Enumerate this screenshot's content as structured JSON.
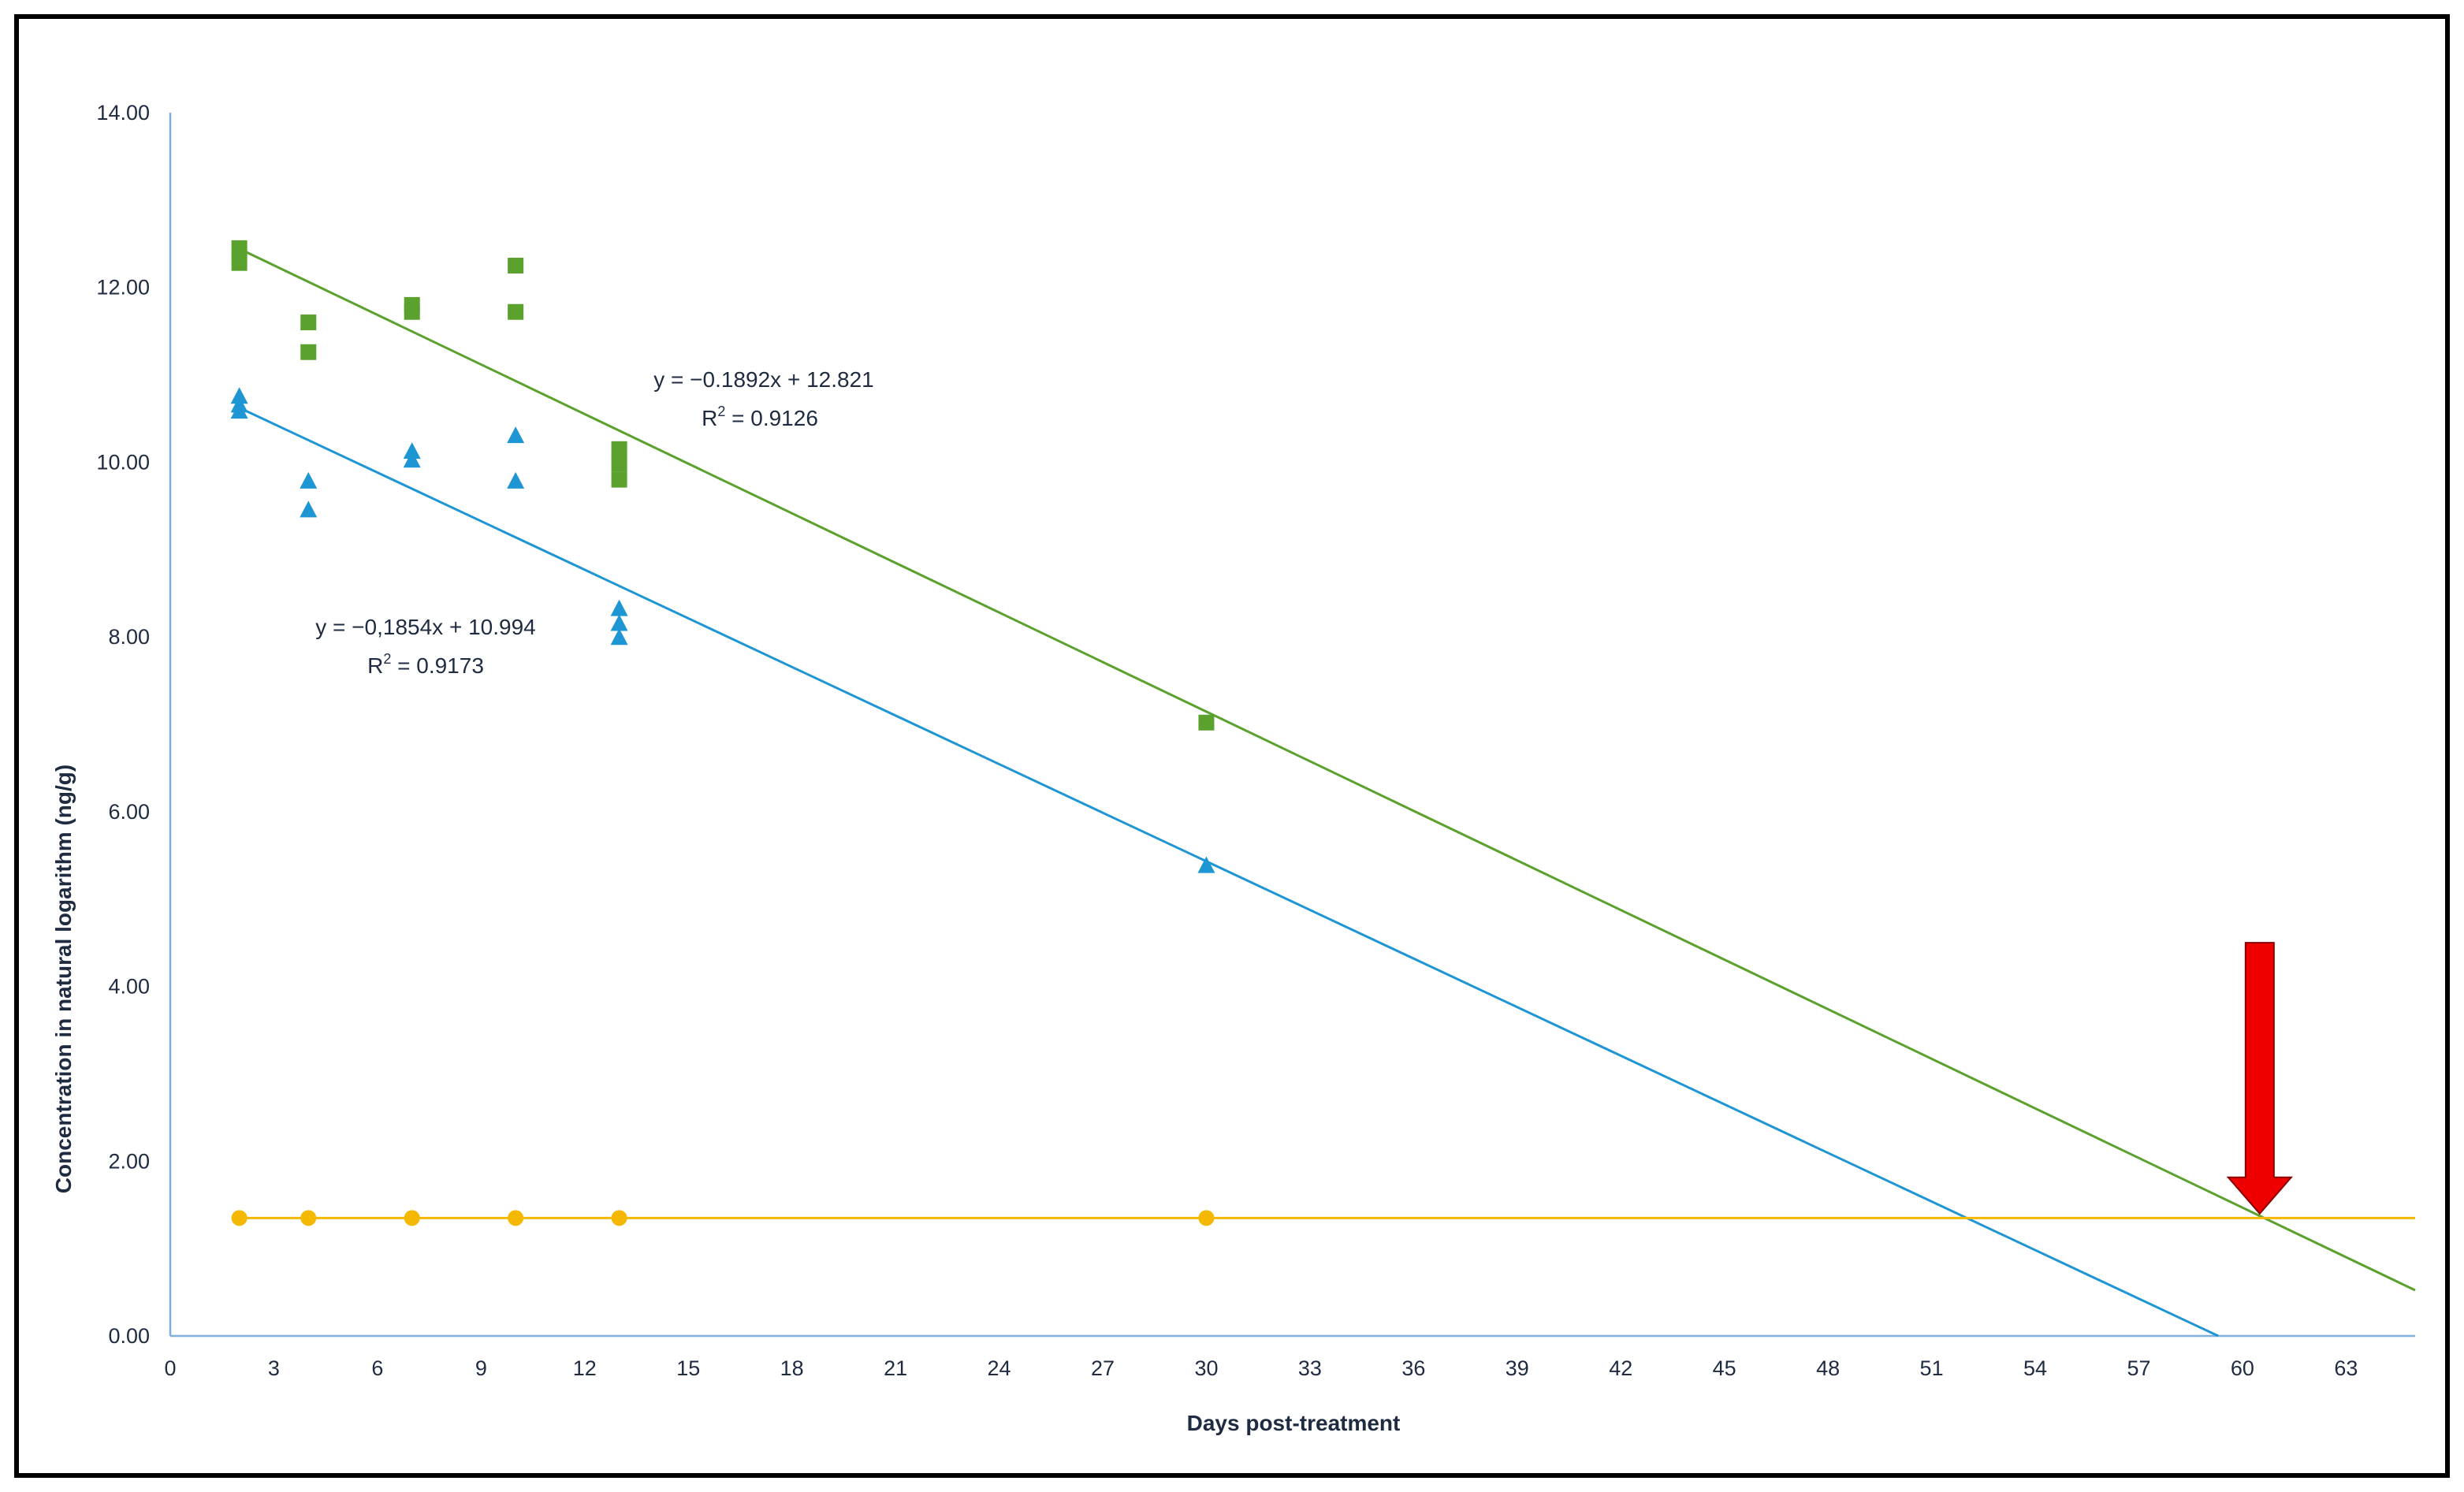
{
  "chart_data": {
    "type": "scatter",
    "xlabel": "Days post-treatment",
    "ylabel": "Concentration in natural logarithm (ng/g)",
    "xlim": [
      0,
      65
    ],
    "ylim": [
      0,
      14
    ],
    "x_ticks": [
      "0",
      "3",
      "6",
      "9",
      "12",
      "15",
      "18",
      "21",
      "24",
      "27",
      "30",
      "33",
      "36",
      "39",
      "42",
      "45",
      "48",
      "51",
      "54",
      "57",
      "60",
      "63"
    ],
    "y_ticks": [
      "0.00",
      "2.00",
      "4.00",
      "6.00",
      "8.00",
      "10.00",
      "12.00",
      "14.00"
    ],
    "grid": false,
    "series": [
      {
        "marker": "square",
        "color": "#5aa12e",
        "points": [
          [
            2,
            12.45
          ],
          [
            2,
            12.28
          ],
          [
            4,
            11.6
          ],
          [
            4,
            11.26
          ],
          [
            7,
            11.8
          ],
          [
            7,
            11.72
          ],
          [
            10,
            12.25
          ],
          [
            10,
            11.72
          ],
          [
            13,
            10.15
          ],
          [
            13,
            9.98
          ],
          [
            13,
            9.8
          ],
          [
            30,
            7.02
          ]
        ]
      },
      {
        "marker": "triangle",
        "color": "#1f96d4",
        "points": [
          [
            2,
            10.75
          ],
          [
            2,
            10.65
          ],
          [
            2,
            10.58
          ],
          [
            4,
            9.78
          ],
          [
            4,
            9.45
          ],
          [
            7,
            10.12
          ],
          [
            7,
            10.02
          ],
          [
            10,
            10.3
          ],
          [
            10,
            9.78
          ],
          [
            13,
            8.32
          ],
          [
            13,
            8.15
          ],
          [
            13,
            7.99
          ],
          [
            30,
            5.38
          ]
        ]
      },
      {
        "marker": "circle",
        "color": "#f5b800",
        "points": [
          [
            2,
            1.35
          ],
          [
            4,
            1.35
          ],
          [
            7,
            1.35
          ],
          [
            10,
            1.35
          ],
          [
            13,
            1.35
          ],
          [
            30,
            1.35
          ]
        ]
      }
    ],
    "trendlines": [
      {
        "color": "#5aa12e",
        "slope": -0.1892,
        "intercept": 12.821,
        "x_start": 2,
        "x_end": 65,
        "equation": "y = −0.1892x + 12.821",
        "r2_value": "= 0.9126"
      },
      {
        "color": "#1f96d4",
        "slope": -0.1854,
        "intercept": 10.994,
        "x_start": 2,
        "x_end": 59.3,
        "equation": "y = −0,1854x + 10.994",
        "r2_value": "= 0.9173"
      },
      {
        "color": "#f5b800",
        "slope": 0,
        "intercept": 1.35,
        "x_start": 2,
        "x_end": 65,
        "equation": "",
        "r2_value": ""
      }
    ],
    "annotation_arrow": {
      "color": "#ee0000",
      "x": 60.5,
      "y_top": 4.5,
      "y_tip": 1.4
    }
  }
}
